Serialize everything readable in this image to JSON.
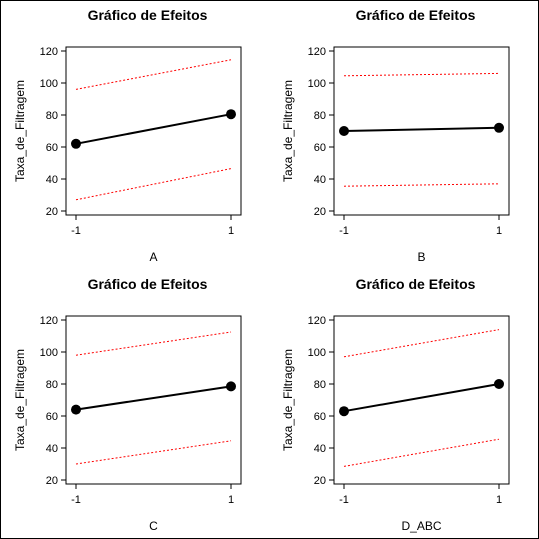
{
  "chart_data": [
    {
      "type": "line",
      "title": "Gráfico de Efeitos",
      "xlabel": "A",
      "ylabel": "Taxa_de_Filtragem",
      "x": [
        -1,
        1
      ],
      "x_tick_labels": [
        "-1",
        "1"
      ],
      "yticks": [
        20,
        40,
        60,
        80,
        100,
        120
      ],
      "ylim": [
        20,
        120
      ],
      "series": [
        {
          "role": "effect",
          "values": [
            62,
            80.5
          ],
          "color": "#000000"
        },
        {
          "role": "upper",
          "values": [
            96,
            114.5
          ],
          "color": "#ff0000"
        },
        {
          "role": "lower",
          "values": [
            27,
            46.5
          ],
          "color": "#ff0000"
        }
      ]
    },
    {
      "type": "line",
      "title": "Gráfico de Efeitos",
      "xlabel": "B",
      "ylabel": "Taxa_de_Filtragem",
      "x": [
        -1,
        1
      ],
      "x_tick_labels": [
        "-1",
        "1"
      ],
      "yticks": [
        20,
        40,
        60,
        80,
        100,
        120
      ],
      "ylim": [
        20,
        120
      ],
      "series": [
        {
          "role": "effect",
          "values": [
            70,
            72
          ],
          "color": "#000000"
        },
        {
          "role": "upper",
          "values": [
            104.5,
            106
          ],
          "color": "#ff0000"
        },
        {
          "role": "lower",
          "values": [
            35.5,
            37
          ],
          "color": "#ff0000"
        }
      ]
    },
    {
      "type": "line",
      "title": "Gráfico de Efeitos",
      "xlabel": "C",
      "ylabel": "Taxa_de_Filtragem",
      "x": [
        -1,
        1
      ],
      "x_tick_labels": [
        "-1",
        "1"
      ],
      "yticks": [
        20,
        40,
        60,
        80,
        100,
        120
      ],
      "ylim": [
        20,
        120
      ],
      "series": [
        {
          "role": "effect",
          "values": [
            64,
            78.5
          ],
          "color": "#000000"
        },
        {
          "role": "upper",
          "values": [
            98,
            112.5
          ],
          "color": "#ff0000"
        },
        {
          "role": "lower",
          "values": [
            30,
            44.5
          ],
          "color": "#ff0000"
        }
      ]
    },
    {
      "type": "line",
      "title": "Gráfico de Efeitos",
      "xlabel": "D_ABC",
      "ylabel": "Taxa_de_Filtragem",
      "x": [
        -1,
        1
      ],
      "x_tick_labels": [
        "-1",
        "1"
      ],
      "yticks": [
        20,
        40,
        60,
        80,
        100,
        120
      ],
      "ylim": [
        20,
        120
      ],
      "series": [
        {
          "role": "effect",
          "values": [
            63,
            80
          ],
          "color": "#000000"
        },
        {
          "role": "upper",
          "values": [
            97,
            114
          ],
          "color": "#ff0000"
        },
        {
          "role": "lower",
          "values": [
            28.5,
            45.5
          ],
          "color": "#ff0000"
        }
      ]
    }
  ]
}
